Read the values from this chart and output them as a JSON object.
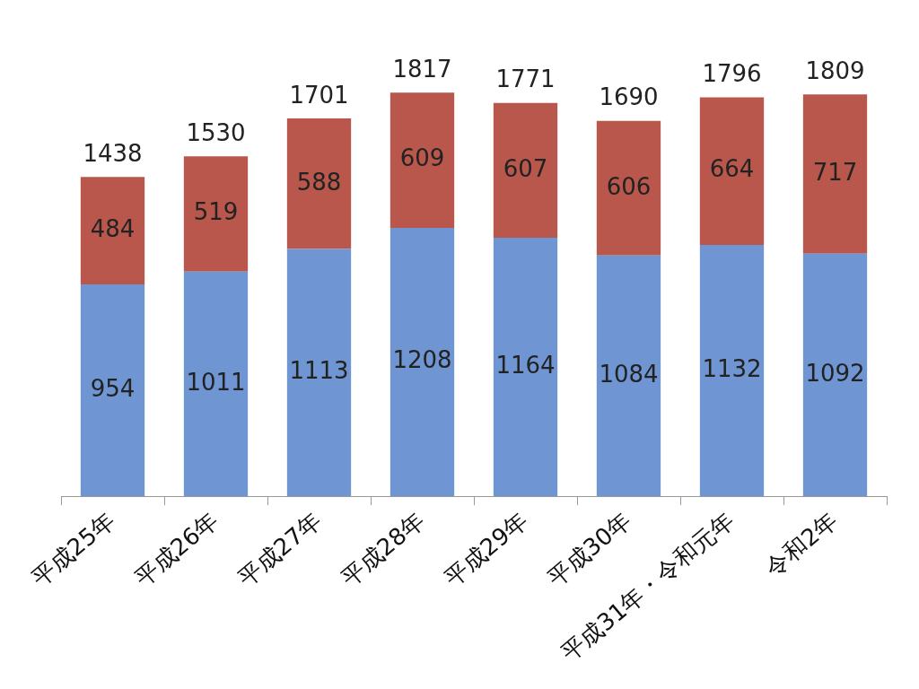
{
  "chart_data": {
    "type": "bar",
    "stacked": true,
    "data_labels": true,
    "categories": [
      "平成25年",
      "平成26年",
      "平成27年",
      "平成28年",
      "平成29年",
      "平成30年",
      "平成31年・令和元年",
      "令和2年"
    ],
    "series": [
      {
        "color": "#6f96d3",
        "values": [
          954,
          1011,
          1113,
          1208,
          1164,
          1084,
          1132,
          1092
        ]
      },
      {
        "color": "#b9574d",
        "values": [
          484,
          519,
          588,
          609,
          607,
          606,
          664,
          717
        ]
      }
    ],
    "totals": [
      "1438",
      "1530",
      "1701",
      "1817",
      "1771",
      "1690",
      "1796",
      "1809"
    ],
    "grid": false,
    "legend": false
  }
}
